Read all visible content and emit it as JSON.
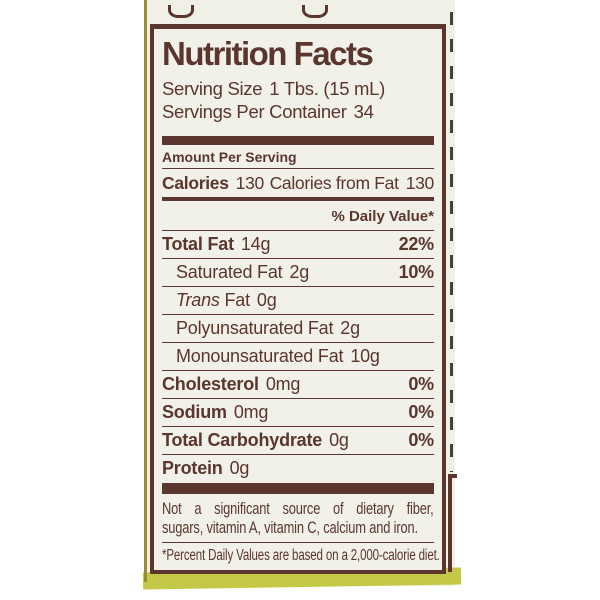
{
  "colors": {
    "panel_ink": "#5a362e",
    "label_background": "#f1f0e7",
    "bottle_green_edge": "#c3c946",
    "label_left_olive_edge": "#978c31",
    "photo_background": "#ffffff"
  },
  "label": {
    "title": "Nutrition Facts",
    "serving_size_label": "Serving Size",
    "serving_size_value": "1 Tbs. (15 mL)",
    "servings_label": "Servings Per Container",
    "servings_value": "34",
    "amount_per_serving": "Amount Per Serving",
    "calories_label": "Calories",
    "calories_value": "130",
    "calories_from_fat_label": "Calories from Fat",
    "calories_from_fat_value": "130",
    "daily_value_header": "% Daily Value*",
    "rows": [
      {
        "bold": "Total Fat",
        "reg": "",
        "amount": "14g",
        "dv": "22%"
      },
      {
        "bold": "",
        "reg": "Saturated Fat",
        "amount": "2g",
        "dv": "10%"
      },
      {
        "bold": "",
        "italic": "Trans",
        "reg": " Fat",
        "amount": "0g",
        "dv": ""
      },
      {
        "bold": "",
        "reg": "Polyunsaturated Fat",
        "amount": "2g",
        "dv": ""
      },
      {
        "bold": "",
        "reg": "Monounsaturated Fat",
        "amount": "10g",
        "dv": ""
      },
      {
        "bold": "Cholesterol",
        "reg": "",
        "amount": "0mg",
        "dv": "0%"
      },
      {
        "bold": "Sodium",
        "reg": "",
        "amount": "0mg",
        "dv": "0%"
      },
      {
        "bold": "Total Carbohydrate",
        "reg": "",
        "amount": "0g",
        "dv": "0%"
      },
      {
        "bold": "Protein",
        "reg": "",
        "amount": "0g",
        "dv": ""
      }
    ],
    "footnote_line1": "Not a significant source of dietary fiber,",
    "footnote_line2": "sugars, vitamin A, vitamin C, calcium and iron.",
    "percent_note": "*Percent Daily Values are based on a 2,000-calorie diet."
  }
}
